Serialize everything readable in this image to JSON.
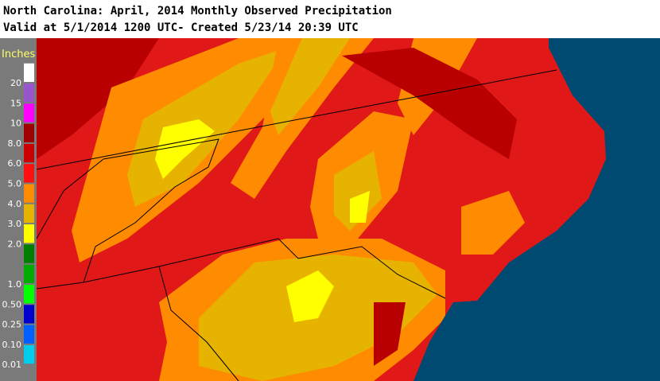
{
  "header": {
    "line1": "North Carolina: April, 2014 Monthly Observed Precipitation",
    "line2": "Valid at 5/1/2014 1200 UTC- Created 5/23/14 20:39 UTC"
  },
  "legend": {
    "title": "Inches",
    "labels": [
      "20",
      "15",
      "10",
      "8.0",
      "6.0",
      "5.0",
      "4.0",
      "3.0",
      "2.0",
      null,
      "1.0",
      "0.50",
      "0.25",
      "0.10",
      "0.01"
    ],
    "colors": [
      "#ffffff",
      "#9955cc",
      "#ff00ff",
      "#a00000",
      "#cc0000",
      "#ff1010",
      "#ff8c00",
      "#e6b400",
      "#ffff00",
      "#007f00",
      "#00aa00",
      "#00ff00",
      "#0000cc",
      "#0060ff",
      "#00ccee"
    ]
  }
}
